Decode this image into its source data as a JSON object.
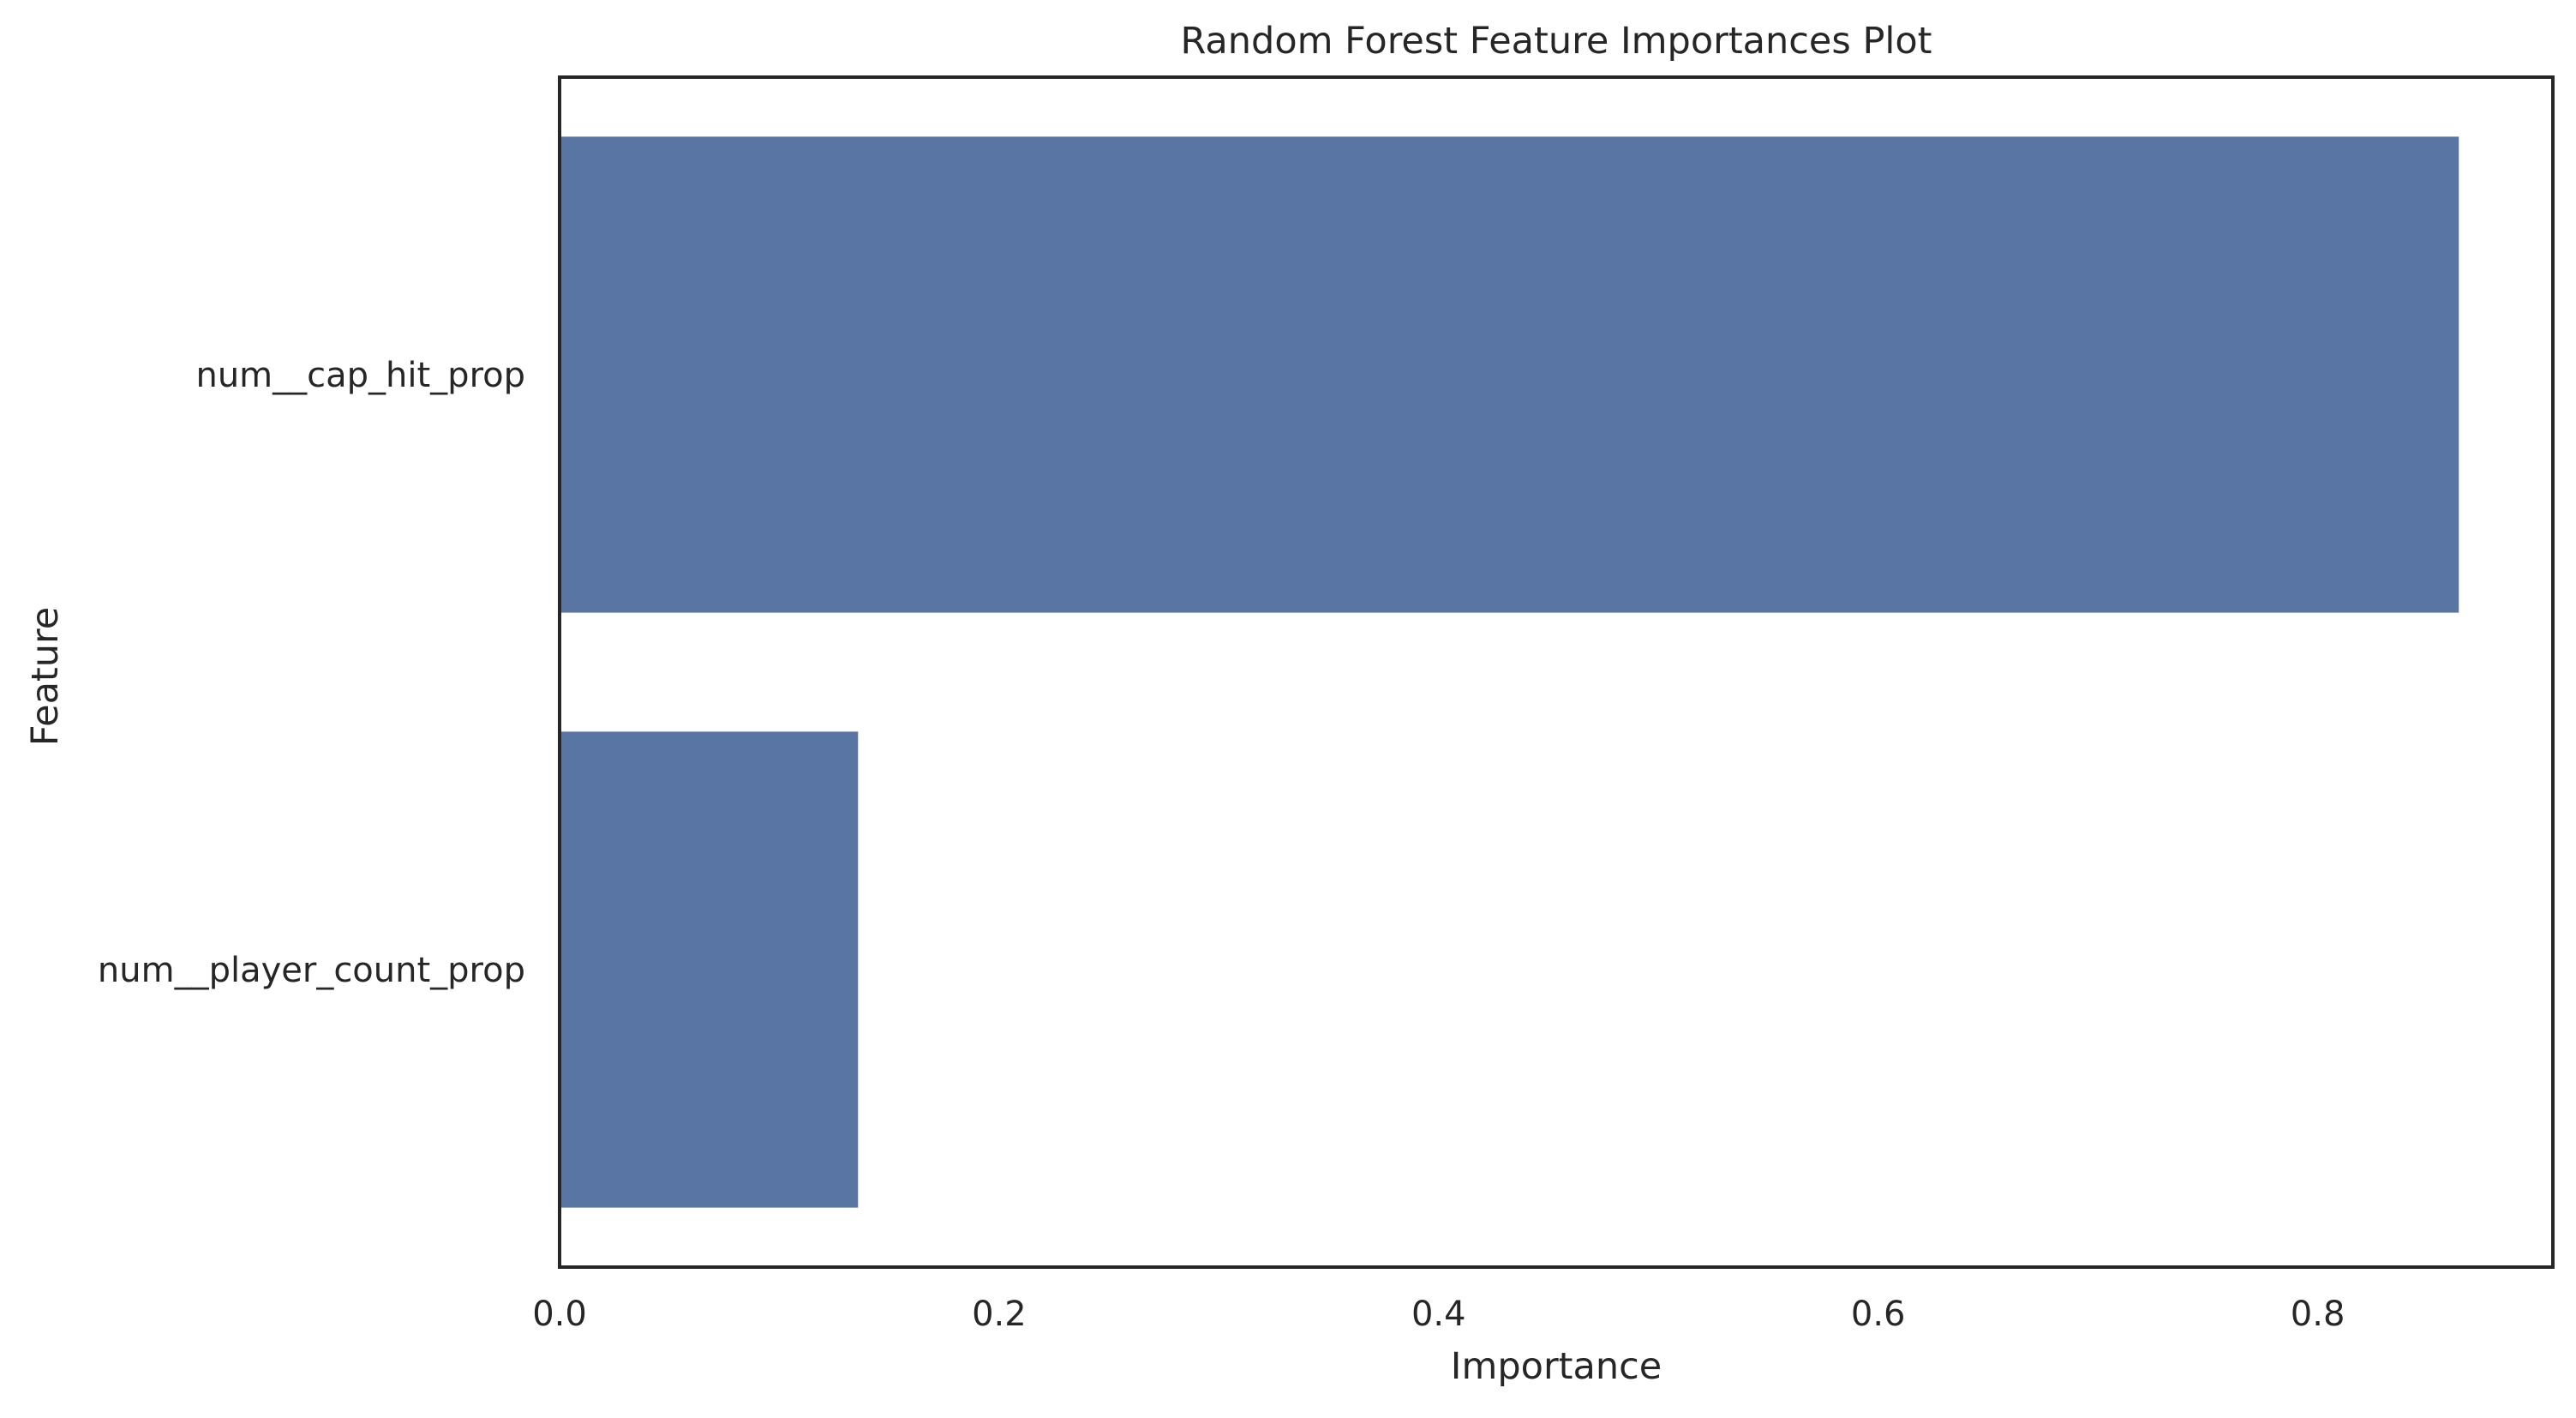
{
  "chart_data": {
    "type": "bar",
    "orientation": "horizontal",
    "title": "Random Forest Feature Importances Plot",
    "xlabel": "Importance",
    "ylabel": "Feature",
    "categories": [
      "num__cap_hit_prop",
      "num__player_count_prop"
    ],
    "values": [
      0.8642,
      0.1358
    ],
    "xlim": [
      0,
      0.907
    ],
    "xticks": [
      0.0,
      0.2,
      0.4,
      0.6,
      0.8
    ],
    "xtick_labels": [
      "0.0",
      "0.2",
      "0.4",
      "0.6",
      "0.8"
    ],
    "bar_color": "#5975a4",
    "grid": false,
    "legend": "none"
  }
}
